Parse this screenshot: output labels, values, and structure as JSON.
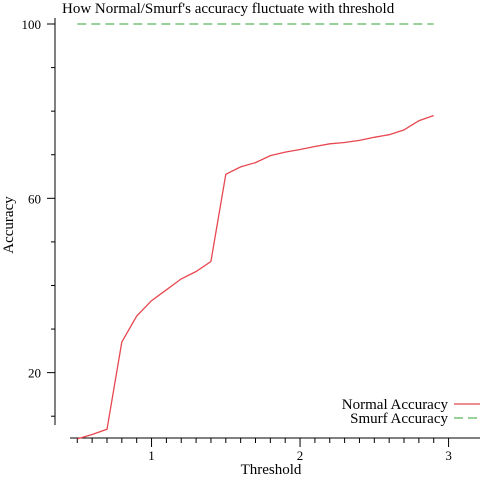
{
  "chart_data": {
    "type": "line",
    "title": "How Normal/Smurf's accuracy fluctuate with threshold",
    "xlabel": "Threshold",
    "ylabel": "Accuracy",
    "xlim": [
      0.35,
      3.05
    ],
    "ylim": [
      5,
      100
    ],
    "x_ticks_major": [
      1,
      2,
      3
    ],
    "x_ticks_minor": [
      0.5,
      0.6,
      0.7,
      0.8,
      0.9,
      1.1,
      1.2,
      1.3,
      1.4,
      1.5,
      1.6,
      1.7,
      1.8,
      1.9,
      2.1,
      2.2,
      2.3,
      2.4,
      2.5,
      2.6,
      2.7,
      2.8,
      2.9
    ],
    "y_ticks_major": [
      20,
      60,
      100
    ],
    "y_ticks_minor": [
      10,
      30,
      40,
      50,
      70,
      80,
      90
    ],
    "grid": false,
    "legend_position": "bottom-right",
    "series": [
      {
        "name": "Normal Accuracy",
        "color": "#e8474f",
        "dash": "solid",
        "x": [
          0.5,
          0.6,
          0.7,
          0.8,
          0.9,
          1.0,
          1.1,
          1.2,
          1.3,
          1.4,
          1.5,
          1.6,
          1.7,
          1.8,
          1.9,
          2.0,
          2.1,
          2.2,
          2.3,
          2.4,
          2.5,
          2.6,
          2.7,
          2.8,
          2.9
        ],
        "y": [
          4.8,
          5.8,
          7.0,
          27.0,
          33.0,
          36.5,
          39.0,
          41.5,
          43.2,
          45.5,
          65.5,
          67.2,
          68.2,
          69.8,
          70.6,
          71.2,
          71.9,
          72.5,
          72.8,
          73.3,
          74.0,
          74.6,
          75.7,
          77.8,
          79.0
        ]
      },
      {
        "name": "Smurf Accuracy",
        "color": "#5cb85c",
        "dash": "dashed",
        "x": [
          0.5,
          2.9
        ],
        "y": [
          100,
          100
        ]
      }
    ]
  }
}
